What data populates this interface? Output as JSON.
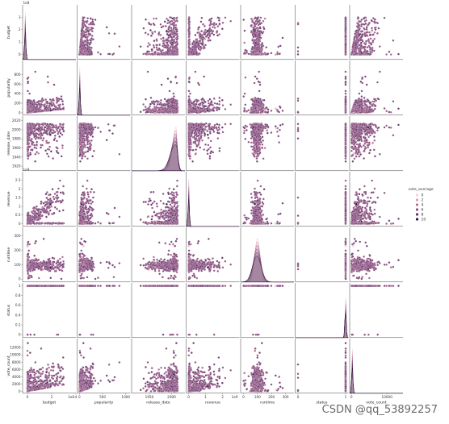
{
  "chart_data": {
    "type": "scatter",
    "subtype": "pairplot",
    "variables": [
      "budget",
      "popularity",
      "release_date",
      "revenue",
      "runtime",
      "status",
      "vote_count"
    ],
    "offsets": {
      "budget": "1e8",
      "popularity": "",
      "release_date": "",
      "revenue": "1e9",
      "runtime": "",
      "status": "",
      "vote_count": ""
    },
    "ranges": {
      "budget": [
        -0.4,
        4.0
      ],
      "popularity": [
        -50,
        1100
      ],
      "release_date": [
        1910,
        2030
      ],
      "revenue": [
        -0.15,
        3.0
      ],
      "runtime": [
        -20,
        360
      ],
      "status": [
        -0.06,
        1.06
      ],
      "vote_count": [
        -500,
        14500
      ]
    },
    "row_ticks": {
      "budget": [
        0,
        1,
        2,
        3
      ],
      "popularity": [
        0,
        200,
        400,
        600,
        800
      ],
      "release_date": [
        1920,
        1940,
        1960,
        1980,
        2000,
        2020
      ],
      "revenue": [
        0.0,
        0.5,
        1.0,
        1.5,
        2.0,
        2.5
      ],
      "runtime": [
        0,
        100,
        200,
        300
      ],
      "status": [
        0.0,
        0.2,
        0.4,
        0.6,
        0.8,
        1.0
      ],
      "vote_count": [
        0,
        2000,
        4000,
        6000,
        8000,
        10000,
        12000
      ]
    },
    "col_ticks": {
      "budget": [
        0,
        2,
        4
      ],
      "popularity": [
        0,
        500,
        1000
      ],
      "release_date": [
        1950,
        2000
      ],
      "revenue": [
        0,
        1,
        2
      ],
      "runtime": [
        0,
        100,
        200,
        300
      ],
      "status": [
        0,
        1
      ],
      "vote_count": [
        0,
        10000
      ]
    },
    "hue": {
      "variable": "vote_average",
      "levels": [
        0,
        2,
        4,
        6,
        8,
        10
      ],
      "colors": [
        "#f2d0dd",
        "#d89fb6",
        "#b36f95",
        "#874d7f",
        "#5b3163",
        "#2a1638"
      ]
    },
    "diag_kind": "kde",
    "mode_status": 1.0,
    "mode_runtime": 100,
    "mode_release_date": 2010,
    "grid": false,
    "legend_placement": "right"
  },
  "watermark": "CSDN @qq_53892257"
}
